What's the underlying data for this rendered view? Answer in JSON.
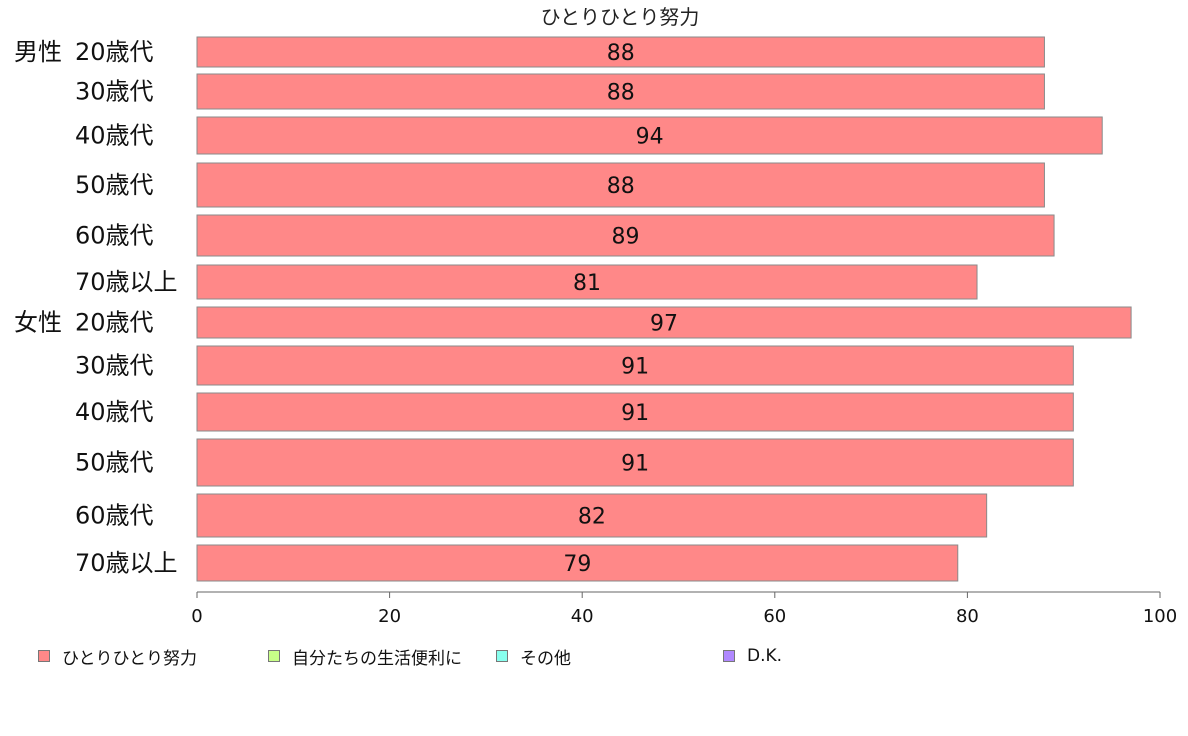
{
  "chart_data": {
    "type": "bar",
    "orientation": "horizontal",
    "title": "ひとりひとり努力",
    "groups": [
      {
        "label": "男性",
        "category_indices": [
          0,
          1,
          2,
          3,
          4,
          5
        ]
      },
      {
        "label": "女性",
        "category_indices": [
          6,
          7,
          8,
          9,
          10,
          11
        ]
      }
    ],
    "categories": [
      "20歳代",
      "30歳代",
      "40歳代",
      "50歳代",
      "60歳代",
      "70歳以上",
      "20歳代",
      "30歳代",
      "40歳代",
      "50歳代",
      "60歳代",
      "70歳以上"
    ],
    "series": [
      {
        "name": "ひとりひとり努力",
        "color": "#ff8888",
        "values": [
          88,
          88,
          94,
          88,
          89,
          81,
          97,
          91,
          91,
          91,
          82,
          79
        ]
      }
    ],
    "xlim": [
      0,
      100
    ],
    "xticks": [
      0,
      20,
      40,
      60,
      80,
      100
    ],
    "legend": {
      "position": "bottom-left",
      "items": [
        {
          "label": "ひとりひとり努力",
          "color": "#ff8888"
        },
        {
          "label": "自分たちの生活便利に",
          "color": "#c8ff88"
        },
        {
          "label": "その他",
          "color": "#88ffee"
        },
        {
          "label": "D.K.",
          "color": "#b088ff"
        }
      ]
    }
  }
}
